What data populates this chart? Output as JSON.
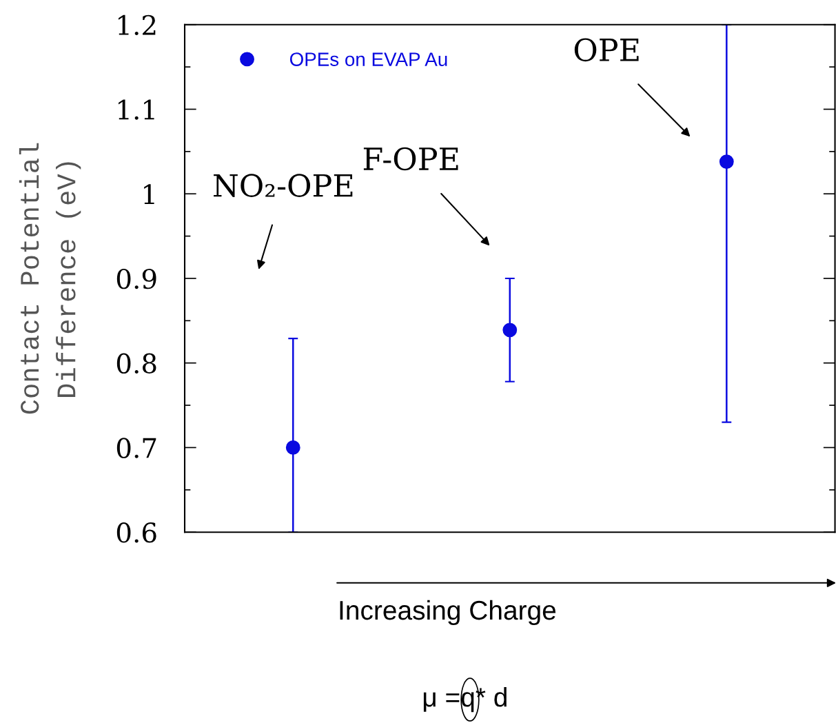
{
  "chart_data": {
    "type": "scatter",
    "ylabel": "Contact Potential\nDifference (eV)",
    "categories": [
      null,
      null,
      null
    ],
    "series": [
      {
        "name": "OPEs on EVAP Au",
        "color": "#0a0ae0",
        "values": [
          0.7,
          0.839,
          1.038
        ],
        "errors": [
          [
            0.6,
            0.829
          ],
          [
            0.778,
            0.9
          ],
          [
            0.73,
            1.2
          ]
        ]
      }
    ],
    "ylim": [
      0.6,
      1.2
    ],
    "yticks": [
      0.6,
      0.7,
      0.8,
      0.9,
      1,
      1.1,
      1.2
    ],
    "tick_labels": "y",
    "grid": false,
    "legend": "top left",
    "marker": "circle",
    "annotations": [
      "NO₂-OPE",
      "F-OPE",
      "OPE",
      "Increasing Charge",
      "μ =q* d"
    ]
  }
}
